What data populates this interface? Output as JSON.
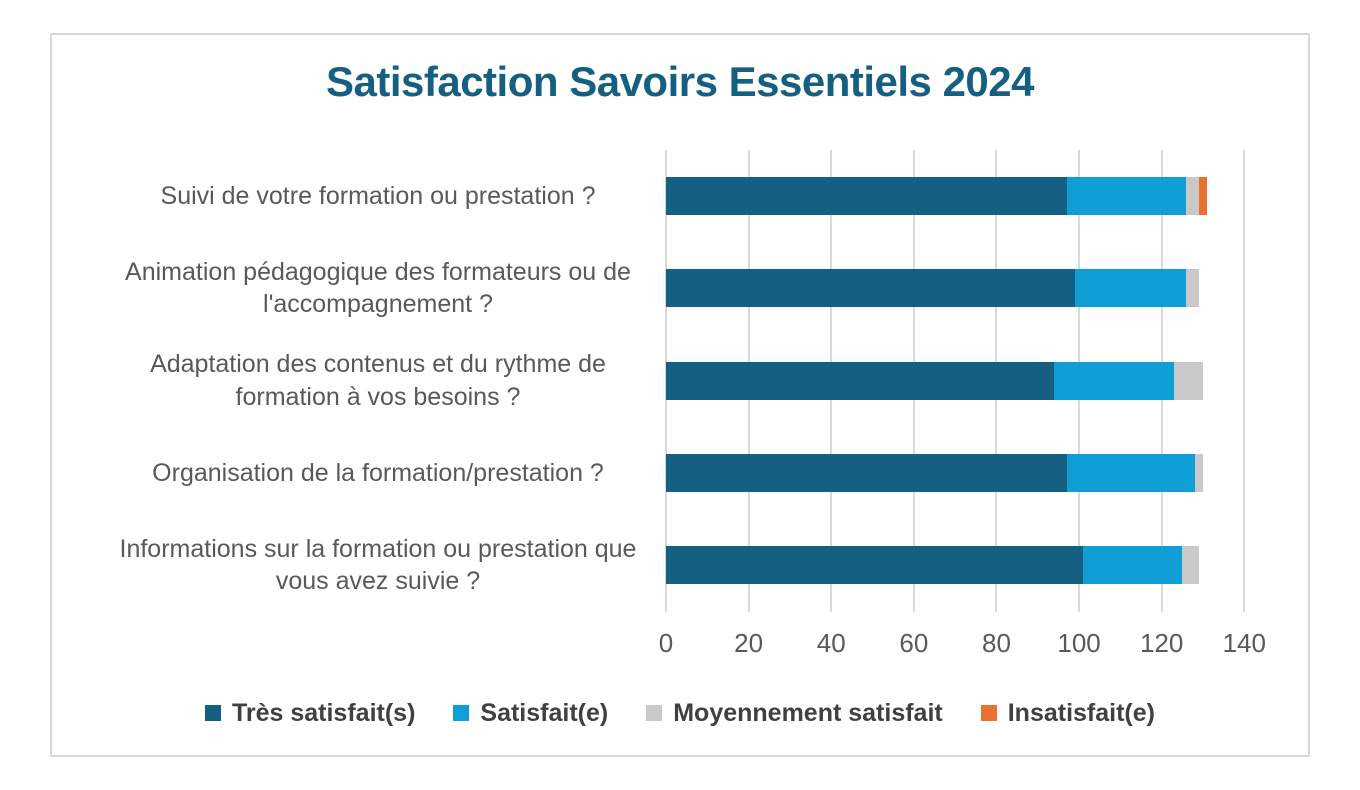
{
  "title": "Satisfaction Savoirs Essentiels 2024",
  "colors": {
    "title_text": "#156082",
    "axis_text": "#595959",
    "legend_text": "#404040",
    "gridline": "#D9D9D9",
    "frame_border": "#D7D7D7",
    "background": "#FFFFFF"
  },
  "chart_data": {
    "type": "bar",
    "orientation": "horizontal",
    "stacked": true,
    "title": "Satisfaction Savoirs Essentiels 2024",
    "categories": [
      "Suivi de votre formation ou prestation ?",
      "Animation pédagogique des formateurs ou de l'accompagnement ?",
      "Adaptation des contenus et du rythme de formation à vos besoins ?",
      "Organisation de la formation/prestation ?",
      "Informations sur la formation ou prestation que vous avez suivie ?"
    ],
    "series": [
      {
        "name": "Très satisfait(s)",
        "color": "#156082",
        "values": [
          97,
          99,
          94,
          97,
          101
        ]
      },
      {
        "name": "Satisfait(e)",
        "color": "#0F9ED5",
        "values": [
          29,
          27,
          29,
          31,
          24
        ]
      },
      {
        "name": "Moyennement satisfait",
        "color": "#C9C9C9",
        "values": [
          3,
          3,
          7,
          2,
          4
        ]
      },
      {
        "name": "Insatisfait(e)",
        "color": "#E97132",
        "values": [
          2,
          0,
          0,
          0,
          0
        ]
      }
    ],
    "x_axis": {
      "min": 0,
      "max": 140,
      "tick_step": 20,
      "tick_labels": [
        "0",
        "20",
        "40",
        "60",
        "80",
        "100",
        "120",
        "140"
      ]
    },
    "grid": true,
    "legend_position": "bottom"
  }
}
